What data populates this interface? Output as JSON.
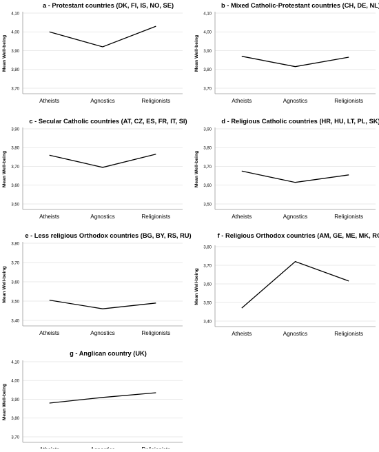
{
  "chart_data": [
    {
      "type": "line",
      "title": "a - Protestant countries (DK, FI, IS, NO, SE)",
      "ylabel": "Mean Well-being",
      "categories": [
        "Atheists",
        "Agnostics",
        "Religionists"
      ],
      "values": [
        4.0,
        3.92,
        4.03
      ],
      "ylim": [
        3.7,
        4.1
      ],
      "yticks": [
        "3,70",
        "3,80",
        "3,90",
        "4,00",
        "4,10"
      ],
      "grid": true
    },
    {
      "type": "line",
      "title": "b - Mixed Catholic-Protestant countries (CH, DE, NL)",
      "ylabel": "Mean Well-being",
      "categories": [
        "Atheists",
        "Agnostics",
        "Religionists"
      ],
      "values": [
        3.87,
        3.815,
        3.865
      ],
      "ylim": [
        3.7,
        4.1
      ],
      "yticks": [
        "3,70",
        "3,80",
        "3,90",
        "4,00",
        "4,10"
      ],
      "grid": true
    },
    {
      "type": "line",
      "title": "c - Secular Catholic countries (AT, CZ, ES, FR, IT, SI)",
      "ylabel": "Mean Well-being",
      "categories": [
        "Atheists",
        "Agnostics",
        "Religionists"
      ],
      "values": [
        3.76,
        3.695,
        3.765
      ],
      "ylim": [
        3.5,
        3.9
      ],
      "yticks": [
        "3,50",
        "3,60",
        "3,70",
        "3,80",
        "3,90"
      ],
      "grid": true
    },
    {
      "type": "line",
      "title": "d - Religious Catholic countries (HR, HU, LT, PL, SK)",
      "ylabel": "Mean Well-being",
      "categories": [
        "Atheists",
        "Agnostics",
        "Religionists"
      ],
      "values": [
        3.675,
        3.615,
        3.655
      ],
      "ylim": [
        3.5,
        3.9
      ],
      "yticks": [
        "3,50",
        "3,60",
        "3,70",
        "3,80",
        "3,90"
      ],
      "grid": true
    },
    {
      "type": "line",
      "title": "e - Less religious Orthodox countries (BG, BY, RS, RU)",
      "ylabel": "Mean Well-being",
      "categories": [
        "Atheists",
        "Agnostics",
        "Religionists"
      ],
      "values": [
        3.505,
        3.46,
        3.49
      ],
      "ylim": [
        3.4,
        3.8
      ],
      "yticks": [
        "3,40",
        "3,50",
        "3,60",
        "3,70",
        "3,80"
      ],
      "grid": true
    },
    {
      "type": "line",
      "title": "f - Religious Orthodox countries (AM, GE, ME, MK, RO)",
      "ylabel": "Mean Well-being",
      "categories": [
        "Atheists",
        "Agnostics",
        "Religionists"
      ],
      "values": [
        3.47,
        3.72,
        3.615
      ],
      "ylim": [
        3.4,
        3.8
      ],
      "yticks": [
        "3,40",
        "3,50",
        "3,60",
        "3,70",
        "3,80"
      ],
      "grid": true
    },
    {
      "type": "line",
      "title": "g - Anglican country (UK)",
      "ylabel": "Mean Well-being",
      "categories": [
        "Atheists",
        "Agnostics",
        "Religionists"
      ],
      "values": [
        3.88,
        3.91,
        3.935
      ],
      "ylim": [
        3.7,
        4.1
      ],
      "yticks": [
        "3,70",
        "3,80",
        "3,90",
        "4,00",
        "4,10"
      ],
      "grid": true
    }
  ],
  "colors": {
    "line": "#000000",
    "grid": "#e3e3e3",
    "axis": "#999999",
    "text": "#000000"
  }
}
